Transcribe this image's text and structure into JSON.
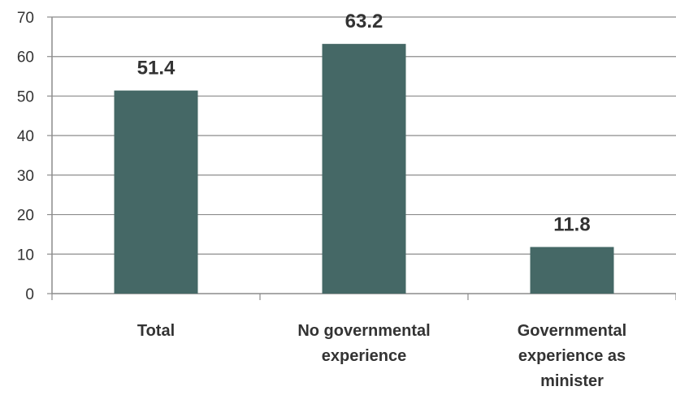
{
  "chart_data": {
    "type": "bar",
    "categories": [
      [
        "Total"
      ],
      [
        "No governmental",
        "experience"
      ],
      [
        "Governmental",
        "experience as",
        "minister"
      ]
    ],
    "values": [
      51.4,
      63.2,
      11.8
    ],
    "value_labels": [
      "51.4",
      "63.2",
      "11.8"
    ],
    "title": "",
    "xlabel": "",
    "ylabel": "",
    "ylim": [
      0,
      70
    ],
    "yticks": [
      0,
      10,
      20,
      30,
      40,
      50,
      60,
      70
    ],
    "grid": true,
    "bar_color": "#456866",
    "grid_color": "#8c8c8c",
    "axis_color": "#8c8c8c"
  }
}
